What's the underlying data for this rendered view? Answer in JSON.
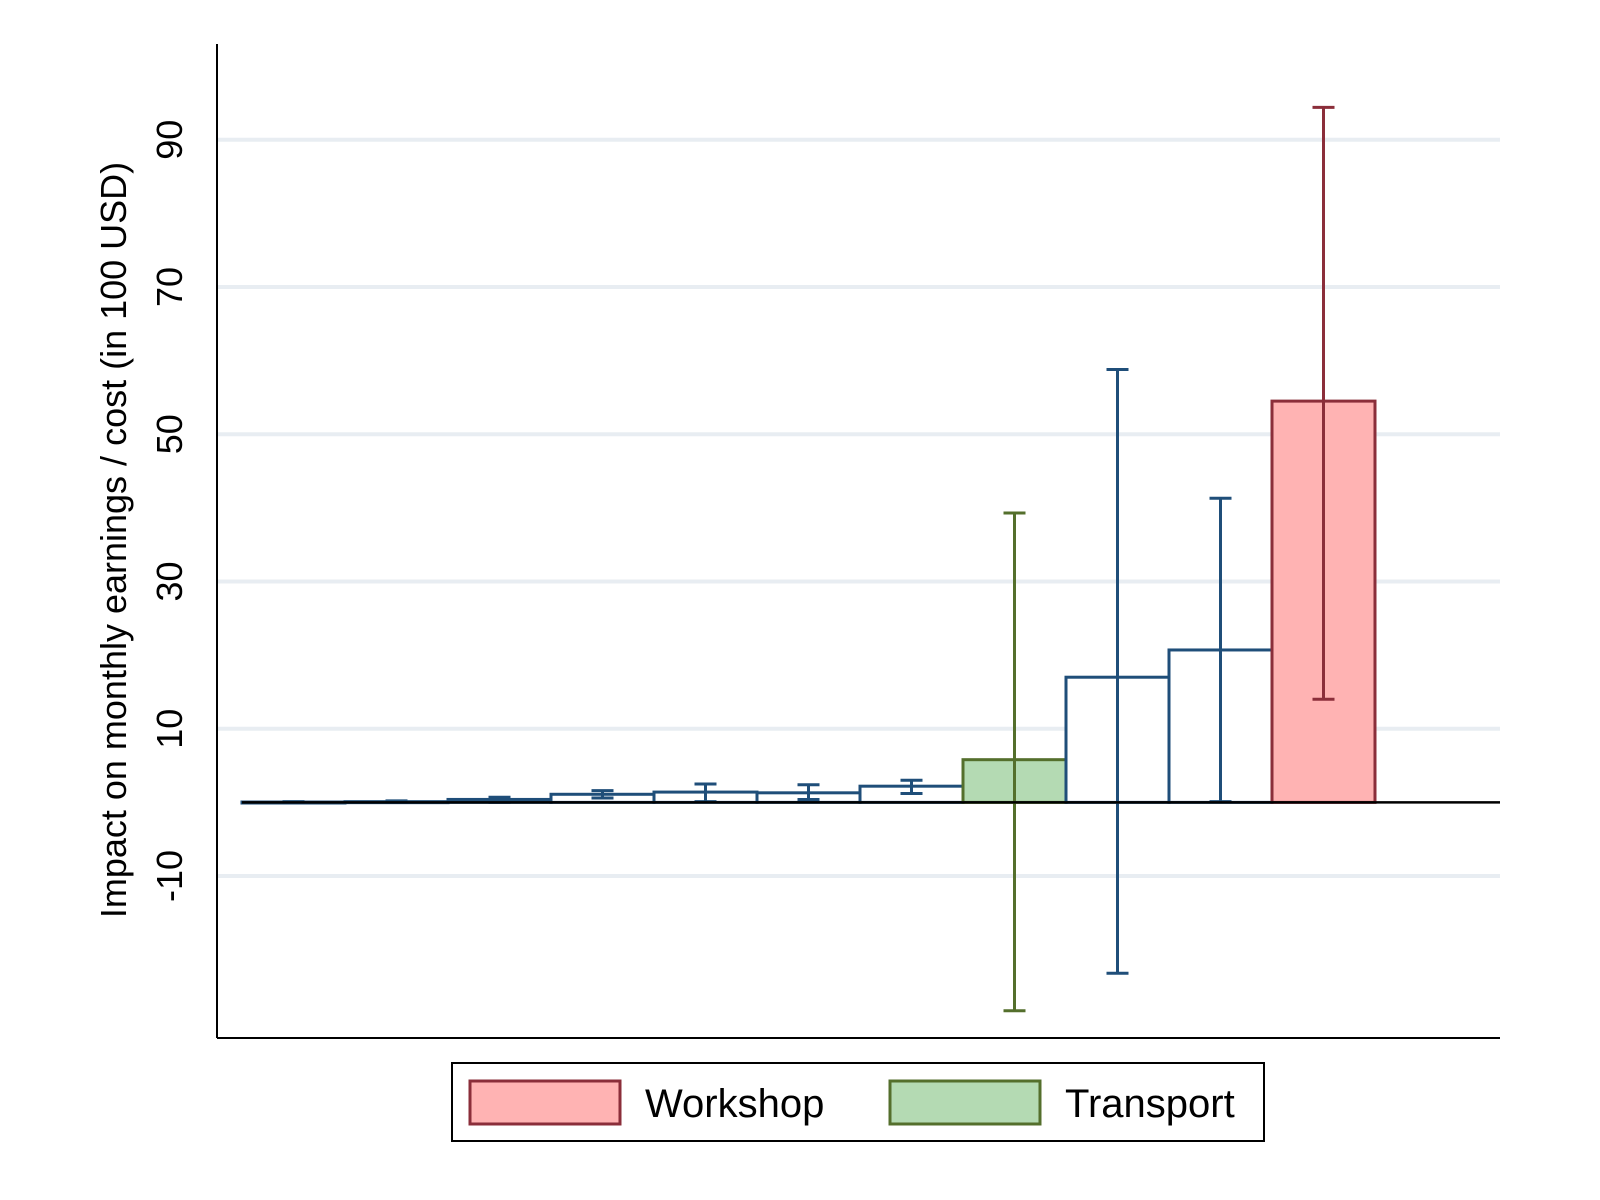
{
  "chart_data": {
    "type": "bar",
    "title": "",
    "xlabel": "",
    "ylabel": "Impact on monthly earnings / cost (in 100 USD)",
    "ylim": [
      -32,
      103
    ],
    "yticks": [
      -10,
      10,
      30,
      50,
      70,
      90
    ],
    "grid": true,
    "legend_position": "bottom",
    "legend": [
      {
        "name": "Workshop",
        "fill": "#ffb3b3",
        "stroke": "#8b2e3a"
      },
      {
        "name": "Transport",
        "fill": "#b4dab3",
        "stroke": "#546f2c"
      }
    ],
    "bars": [
      {
        "value": 0.05,
        "ci_low": 0.0,
        "ci_high": 0.1,
        "group": "other"
      },
      {
        "value": 0.1,
        "ci_low": 0.0,
        "ci_high": 0.2,
        "group": "other"
      },
      {
        "value": 0.4,
        "ci_low": 0.0,
        "ci_high": 0.7,
        "group": "other"
      },
      {
        "value": 1.1,
        "ci_low": 0.6,
        "ci_high": 1.6,
        "group": "other"
      },
      {
        "value": 1.4,
        "ci_low": 0.1,
        "ci_high": 2.5,
        "group": "other"
      },
      {
        "value": 1.3,
        "ci_low": 0.4,
        "ci_high": 2.4,
        "group": "other"
      },
      {
        "value": 2.2,
        "ci_low": 1.2,
        "ci_high": 3.0,
        "group": "other"
      },
      {
        "value": 5.8,
        "ci_low": -28.3,
        "ci_high": 39.3,
        "group": "Transport"
      },
      {
        "value": 17.0,
        "ci_low": -23.2,
        "ci_high": 58.8,
        "group": "other"
      },
      {
        "value": 20.7,
        "ci_low": 0.1,
        "ci_high": 41.3,
        "group": "other"
      },
      {
        "value": 54.5,
        "ci_low": 14.0,
        "ci_high": 94.4,
        "group": "Workshop"
      }
    ]
  },
  "colors": {
    "other_stroke": "#1f4e79",
    "other_fill": "#ffffff",
    "grid": "#e8edf2",
    "axis": "#000000"
  }
}
